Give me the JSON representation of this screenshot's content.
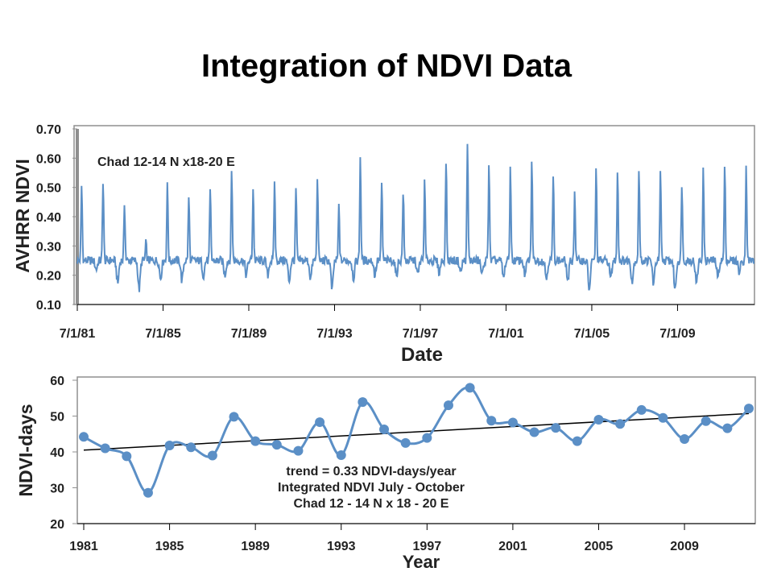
{
  "slide": {
    "title": "Integration of NDVI Data"
  },
  "colors": {
    "series": "#5b8fc6",
    "trend": "#000000",
    "frame": "#8f8f8f"
  },
  "chart_data": [
    {
      "type": "line",
      "title": "",
      "annotation": "Chad 12-14 N x18-20 E",
      "xlabel": "Date",
      "ylabel": "AVHRR NDVI",
      "ylim": [
        0.1,
        0.7
      ],
      "xlim": [
        "1981-07-01",
        "2013-02-01"
      ],
      "y_ticks": [
        "0.10",
        "0.20",
        "0.30",
        "0.40",
        "0.50",
        "0.60",
        "0.70"
      ],
      "x_tick_labels": [
        "7/1/81",
        "7/1/85",
        "7/1/89",
        "7/1/93",
        "7/1/97",
        "7/1/01",
        "7/1/05",
        "7/1/09"
      ],
      "grid": false,
      "series": [
        {
          "peaks": [
            {
              "year": 1981,
              "value": 0.51
            },
            {
              "year": 1982,
              "value": 0.53
            },
            {
              "year": 1983,
              "value": 0.45
            },
            {
              "year": 1984,
              "value": 0.31
            },
            {
              "year": 1985,
              "value": 0.51
            },
            {
              "year": 1986,
              "value": 0.47
            },
            {
              "year": 1987,
              "value": 0.49
            },
            {
              "year": 1988,
              "value": 0.56
            },
            {
              "year": 1989,
              "value": 0.5
            },
            {
              "year": 1990,
              "value": 0.52
            },
            {
              "year": 1991,
              "value": 0.5
            },
            {
              "year": 1992,
              "value": 0.54
            },
            {
              "year": 1993,
              "value": 0.44
            },
            {
              "year": 1994,
              "value": 0.61
            },
            {
              "year": 1995,
              "value": 0.52
            },
            {
              "year": 1996,
              "value": 0.49
            },
            {
              "year": 1997,
              "value": 0.52
            },
            {
              "year": 1998,
              "value": 0.6
            },
            {
              "year": 1999,
              "value": 0.65
            },
            {
              "year": 2000,
              "value": 0.59
            },
            {
              "year": 2001,
              "value": 0.57
            },
            {
              "year": 2002,
              "value": 0.59
            },
            {
              "year": 2003,
              "value": 0.54
            },
            {
              "year": 2004,
              "value": 0.49
            },
            {
              "year": 2005,
              "value": 0.56
            },
            {
              "year": 2006,
              "value": 0.56
            },
            {
              "year": 2007,
              "value": 0.57
            },
            {
              "year": 2008,
              "value": 0.55
            },
            {
              "year": 2009,
              "value": 0.52
            },
            {
              "year": 2010,
              "value": 0.56
            },
            {
              "year": 2011,
              "value": 0.57
            },
            {
              "year": 2012,
              "value": 0.57
            }
          ],
          "troughs": [
            {
              "year": 1981,
              "value": 0.23
            },
            {
              "year": 1982,
              "value": 0.22
            },
            {
              "year": 1983,
              "value": 0.17
            },
            {
              "year": 1984,
              "value": 0.15
            },
            {
              "year": 1985,
              "value": 0.19
            },
            {
              "year": 1986,
              "value": 0.18
            },
            {
              "year": 1987,
              "value": 0.2
            },
            {
              "year": 1988,
              "value": 0.2
            },
            {
              "year": 1989,
              "value": 0.2
            },
            {
              "year": 1990,
              "value": 0.2
            },
            {
              "year": 1991,
              "value": 0.18
            },
            {
              "year": 1992,
              "value": 0.19
            },
            {
              "year": 1993,
              "value": 0.15
            },
            {
              "year": 1994,
              "value": 0.19
            },
            {
              "year": 1995,
              "value": 0.2
            },
            {
              "year": 1996,
              "value": 0.2
            },
            {
              "year": 1997,
              "value": 0.2
            },
            {
              "year": 1998,
              "value": 0.21
            },
            {
              "year": 1999,
              "value": 0.21
            },
            {
              "year": 2000,
              "value": 0.2
            },
            {
              "year": 2001,
              "value": 0.19
            },
            {
              "year": 2002,
              "value": 0.2
            },
            {
              "year": 2003,
              "value": 0.19
            },
            {
              "year": 2004,
              "value": 0.18
            },
            {
              "year": 2005,
              "value": 0.15
            },
            {
              "year": 2006,
              "value": 0.19
            },
            {
              "year": 2007,
              "value": 0.18
            },
            {
              "year": 2008,
              "value": 0.17
            },
            {
              "year": 2009,
              "value": 0.15
            },
            {
              "year": 2010,
              "value": 0.17
            },
            {
              "year": 2011,
              "value": 0.19
            },
            {
              "year": 2012,
              "value": 0.21
            }
          ],
          "baseline": 0.25
        }
      ]
    },
    {
      "type": "line",
      "title": "",
      "xlabel": "Year",
      "ylabel": "NDVI-days",
      "ylim": [
        20,
        60
      ],
      "xlim": [
        1981,
        2012
      ],
      "y_ticks": [
        "20",
        "30",
        "40",
        "50",
        "60"
      ],
      "x_tick_labels": [
        "1981",
        "1985",
        "1989",
        "1993",
        "1997",
        "2001",
        "2005",
        "2009"
      ],
      "grid": false,
      "annotations": [
        "trend = 0.33 NDVI-days/year",
        "Integrated NDVI July - October",
        "Chad 12 - 14 N x 18 - 20 E"
      ],
      "x": [
        1981,
        1982,
        1983,
        1984,
        1985,
        1986,
        1987,
        1988,
        1989,
        1990,
        1991,
        1992,
        1993,
        1994,
        1995,
        1996,
        1997,
        1998,
        1999,
        2000,
        2001,
        2002,
        2003,
        2004,
        2005,
        2006,
        2007,
        2008,
        2009,
        2010,
        2011,
        2012
      ],
      "series": [
        {
          "values": [
            44.2,
            41.0,
            38.8,
            28.6,
            41.8,
            41.3,
            39.0,
            49.8,
            43.0,
            42.0,
            40.3,
            48.3,
            39.1,
            53.9,
            46.3,
            42.5,
            43.9,
            53.0,
            57.9,
            48.7,
            48.2,
            45.5,
            46.7,
            43.0,
            49.0,
            47.8,
            51.7,
            49.5,
            43.6,
            48.6,
            46.6,
            52.1
          ]
        }
      ],
      "trend": {
        "start": [
          1981,
          40.5
        ],
        "end": [
          2012,
          50.7
        ]
      }
    }
  ]
}
